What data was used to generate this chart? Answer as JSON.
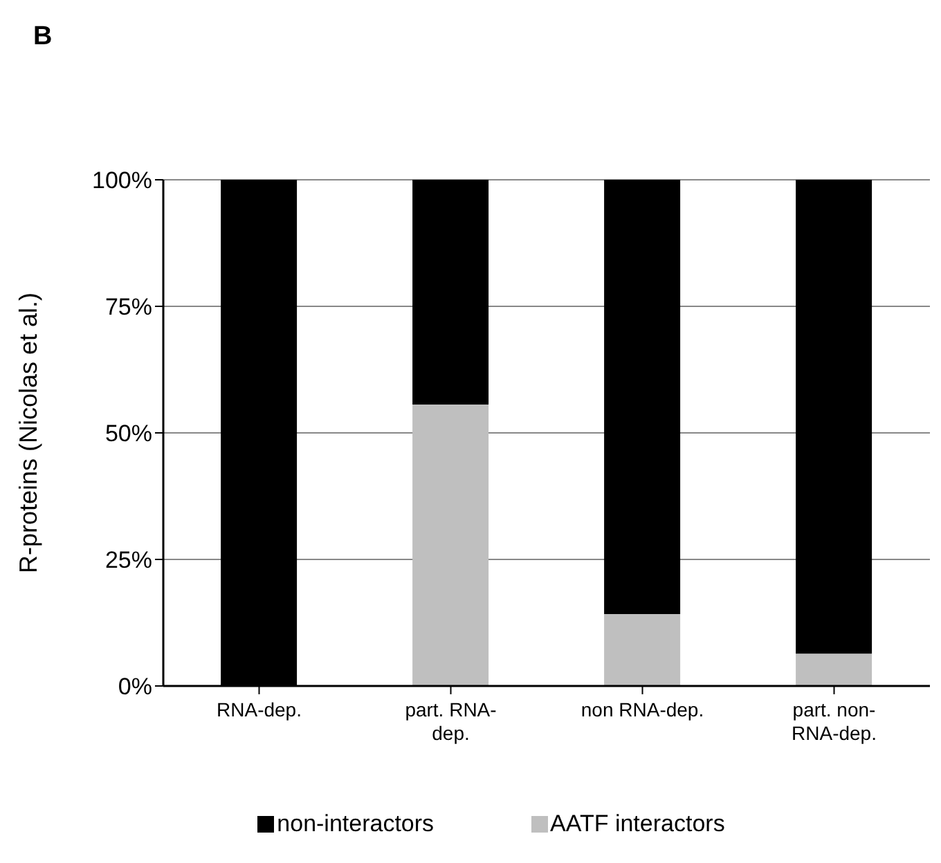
{
  "chart_data": {
    "type": "bar",
    "title": "B",
    "ylabel": "R-proteins (Nicolas et al.)",
    "categories": [
      "RNA-dep.",
      "part. RNA-dep.",
      "non RNA-dep.",
      "part. non-RNA-dep."
    ],
    "stacked": true,
    "series": [
      {
        "name": "AATF interactors",
        "color": "#bfbfbf",
        "values": [
          0,
          55.6,
          14.2,
          6.4
        ]
      },
      {
        "name": "non-interactors",
        "color": "#000000",
        "values": [
          100,
          44.4,
          85.8,
          93.6
        ]
      }
    ],
    "ylim": [
      0,
      100
    ],
    "yticks": [
      {
        "value": 0,
        "label": "0%"
      },
      {
        "value": 25,
        "label": "25%"
      },
      {
        "value": 50,
        "label": "50%"
      },
      {
        "value": 75,
        "label": "75%"
      },
      {
        "value": 100,
        "label": "100%"
      }
    ],
    "grid": "y",
    "legend": "bottom"
  }
}
